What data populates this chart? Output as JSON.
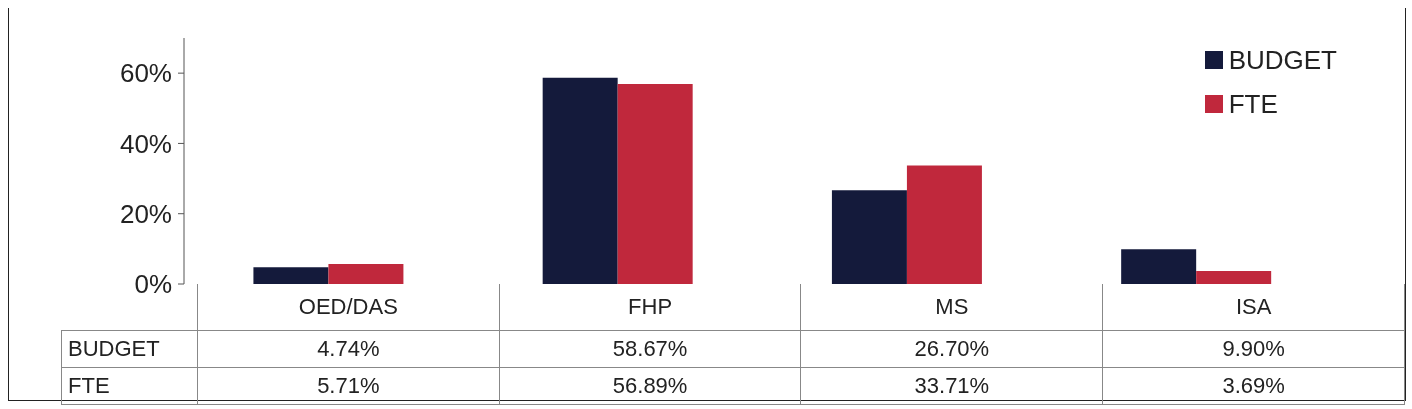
{
  "chart_data": {
    "type": "bar",
    "categories": [
      "OED/DAS",
      "FHP",
      "MS",
      "ISA"
    ],
    "series": [
      {
        "name": "BUDGET",
        "color": "#141a3b",
        "values": [
          4.74,
          58.67,
          26.7,
          9.9
        ],
        "value_labels": [
          "4.74%",
          "58.67%",
          "26.70%",
          "9.90%"
        ]
      },
      {
        "name": "FTE",
        "color": "#c0283c",
        "values": [
          5.71,
          56.89,
          33.71,
          3.69
        ],
        "value_labels": [
          "5.71%",
          "56.89%",
          "33.71%",
          "3.69%"
        ]
      }
    ],
    "ylim": [
      0,
      70
    ],
    "yticks": [
      {
        "value": 0,
        "label": "0%"
      },
      {
        "value": 20,
        "label": "20%"
      },
      {
        "value": 40,
        "label": "40%"
      },
      {
        "value": 60,
        "label": "60%"
      }
    ],
    "grid": false,
    "legend": "top right"
  }
}
